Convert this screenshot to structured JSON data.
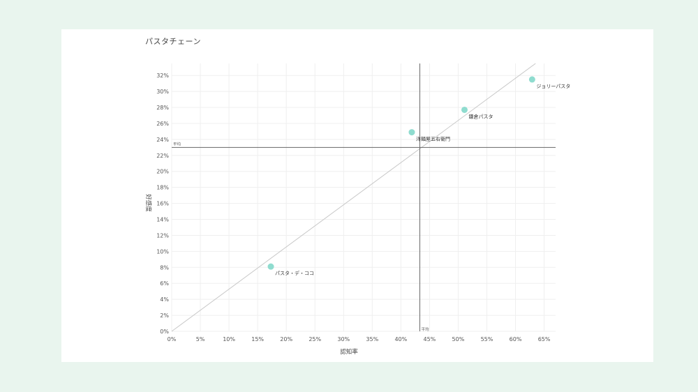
{
  "chart_data": {
    "type": "scatter",
    "title": "パスタチェーン",
    "xlabel": "認知率",
    "ylabel": "好感度",
    "xlim": [
      0,
      67
    ],
    "ylim": [
      0,
      33.5
    ],
    "xticks": [
      0,
      5,
      10,
      15,
      20,
      25,
      30,
      35,
      40,
      45,
      50,
      55,
      60,
      65
    ],
    "yticks": [
      0,
      2,
      4,
      6,
      8,
      10,
      12,
      14,
      16,
      18,
      20,
      22,
      24,
      26,
      28,
      30,
      32
    ],
    "tick_suffix": "%",
    "grid": true,
    "point_color": "#8fdccf",
    "points": [
      {
        "label": "パスタ・デ・ココ",
        "x": 17.3,
        "y": 8.1
      },
      {
        "label": "洋麺屋五右衛門",
        "x": 41.9,
        "y": 24.9
      },
      {
        "label": "鎌倉パスタ",
        "x": 51.1,
        "y": 27.7
      },
      {
        "label": "ジョリーパスタ",
        "x": 62.9,
        "y": 31.5
      }
    ],
    "average_lines": {
      "label": "平均",
      "x": 43.3,
      "y": 23.0
    },
    "trend_line": {
      "from": [
        0,
        0
      ],
      "to": [
        63.5,
        33.5
      ]
    }
  }
}
